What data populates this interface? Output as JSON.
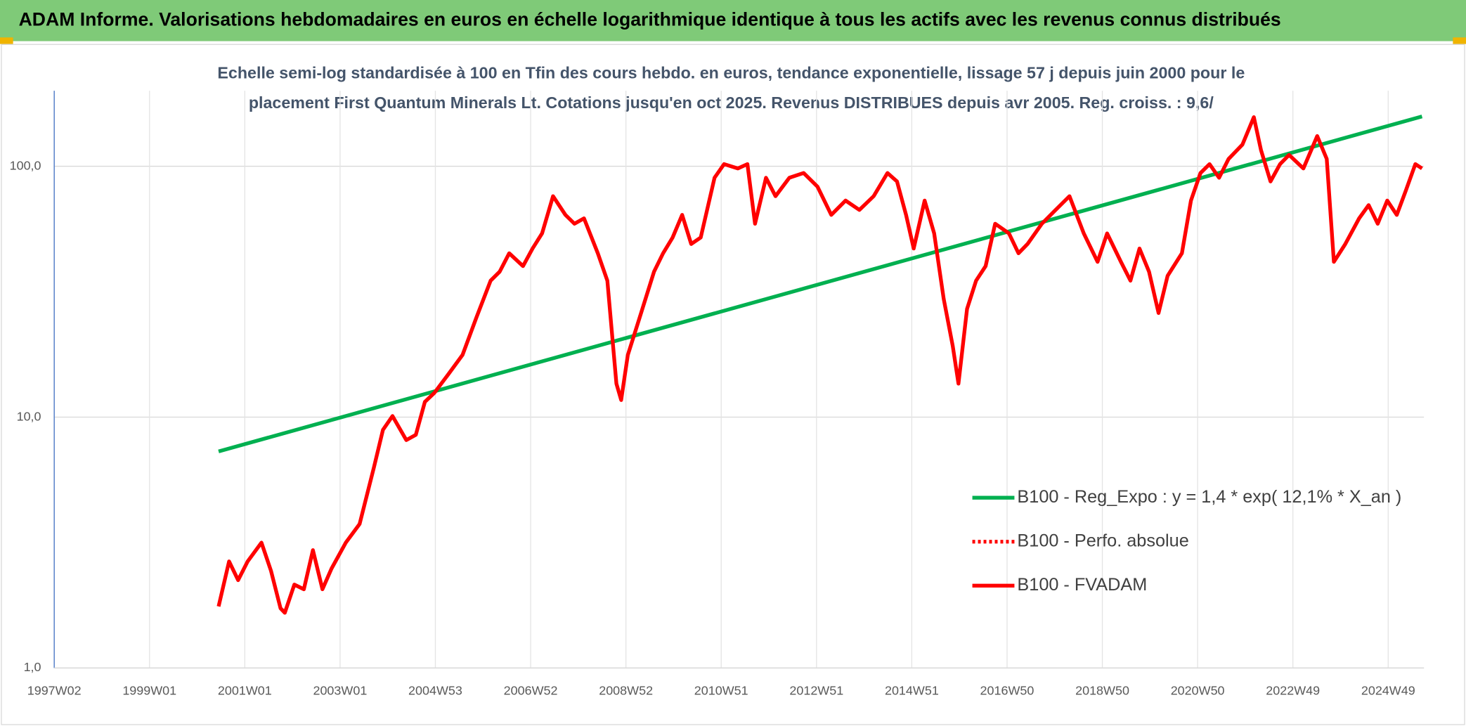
{
  "chart_data": {
    "type": "line",
    "title": "ADAM Informe. Valorisations hebdomadaires en euros en échelle logarithmique identique à tous les actifs avec les revenus connus distribués",
    "subtitle": [
      "Echelle semi-log standardisée à 100 en Tfin des cours hebdo. en euros, tendance exponentielle, lissage 57 j depuis juin 2000 pour le",
      "placement First Quantum Minerals Lt. Cotations jusqu'en oct 2025. Revenus DISTRIBUES depuis avr 2005. Reg. croiss. : 9,6/"
    ],
    "log_y": true,
    "grid": true,
    "legend": "lower right",
    "xlim": [
      1997,
      2025.75
    ],
    "ylim": [
      1,
      200
    ],
    "xticks": [
      {
        "value": 1997,
        "label": "1997W02"
      },
      {
        "value": 1999,
        "label": "1999W01"
      },
      {
        "value": 2001,
        "label": "2001W01"
      },
      {
        "value": 2003,
        "label": "2003W01"
      },
      {
        "value": 2005,
        "label": "2004W53"
      },
      {
        "value": 2007,
        "label": "2006W52"
      },
      {
        "value": 2009,
        "label": "2008W52"
      },
      {
        "value": 2011,
        "label": "2010W51"
      },
      {
        "value": 2013,
        "label": "2012W51"
      },
      {
        "value": 2015,
        "label": "2014W51"
      },
      {
        "value": 2017,
        "label": "2016W50"
      },
      {
        "value": 2019,
        "label": "2018W50"
      },
      {
        "value": 2021,
        "label": "2020W50"
      },
      {
        "value": 2023,
        "label": "2022W49"
      },
      {
        "value": 2025,
        "label": "2024W49"
      }
    ],
    "yticks": [
      {
        "value": 1,
        "label": "1,0"
      },
      {
        "value": 10,
        "label": "10,0"
      },
      {
        "value": 100,
        "label": "100,0"
      }
    ],
    "series": [
      {
        "name": "B100 - Reg_Expo : y = 1,4 * exp( 12,1% *  X_an )",
        "color": "#00b050",
        "style": "solid",
        "x": [
          2000.45,
          2025.71
        ],
        "values": [
          7.3,
          158
        ]
      },
      {
        "name": "B100 - Perfo. absolue",
        "color": "#ff0000",
        "style": "dotted",
        "x": [],
        "values": []
      },
      {
        "name": "B100 - FVADAM",
        "color": "#ff0000",
        "style": "solid",
        "x": [
          2000.45,
          2000.67,
          2000.86,
          2001.06,
          2001.35,
          2001.55,
          2001.75,
          2001.84,
          2002.04,
          2002.24,
          2002.43,
          2002.63,
          2002.82,
          2003.12,
          2003.41,
          2003.71,
          2003.9,
          2004.1,
          2004.39,
          2004.59,
          2004.78,
          2004.98,
          2005.27,
          2005.57,
          2005.86,
          2006.16,
          2006.35,
          2006.55,
          2006.84,
          2007.04,
          2007.24,
          2007.47,
          2007.73,
          2007.92,
          2008.12,
          2008.41,
          2008.61,
          2008.8,
          2008.9,
          2009.04,
          2009.29,
          2009.59,
          2009.78,
          2009.98,
          2010.18,
          2010.37,
          2010.57,
          2010.86,
          2011.06,
          2011.35,
          2011.55,
          2011.71,
          2011.94,
          2012.14,
          2012.43,
          2012.73,
          2013.02,
          2013.31,
          2013.61,
          2013.9,
          2014.2,
          2014.49,
          2014.69,
          2014.88,
          2015.04,
          2015.27,
          2015.47,
          2015.67,
          2015.86,
          2015.98,
          2016.16,
          2016.35,
          2016.55,
          2016.75,
          2017.04,
          2017.24,
          2017.43,
          2017.73,
          2018.02,
          2018.31,
          2018.61,
          2018.9,
          2019.1,
          2019.39,
          2019.59,
          2019.78,
          2019.98,
          2020.18,
          2020.37,
          2020.67,
          2020.86,
          2021.06,
          2021.25,
          2021.45,
          2021.65,
          2021.94,
          2022.18,
          2022.33,
          2022.53,
          2022.73,
          2022.92,
          2023.22,
          2023.51,
          2023.71,
          2023.86,
          2024.1,
          2024.39,
          2024.59,
          2024.78,
          2024.98,
          2025.18,
          2025.37,
          2025.57,
          2025.71
        ],
        "values": [
          1.76,
          2.66,
          2.24,
          2.66,
          3.16,
          2.44,
          1.73,
          1.66,
          2.15,
          2.06,
          2.95,
          2.06,
          2.49,
          3.16,
          3.75,
          6.3,
          8.9,
          10.1,
          8.1,
          8.5,
          11.5,
          12.5,
          14.8,
          17.7,
          24.9,
          35,
          38,
          45,
          40,
          47,
          54,
          76,
          64,
          59,
          62,
          45,
          35,
          13.6,
          11.7,
          17.7,
          25,
          38,
          45,
          52,
          64,
          49,
          52,
          90,
          102,
          98,
          102,
          59,
          90,
          76,
          90,
          94,
          83,
          64,
          73,
          67,
          76,
          94,
          87,
          64,
          47,
          73,
          54,
          29.6,
          19.2,
          13.6,
          27,
          35,
          40,
          59,
          54,
          45,
          49,
          59,
          67,
          76,
          54,
          41.6,
          54,
          41.6,
          35,
          47,
          38,
          26,
          36.6,
          45,
          73,
          94,
          102,
          90,
          107,
          122,
          157,
          116,
          87,
          102,
          111,
          98,
          132,
          107,
          41.6,
          49,
          62,
          70,
          59,
          73,
          64,
          80,
          102,
          98
        ]
      }
    ]
  }
}
